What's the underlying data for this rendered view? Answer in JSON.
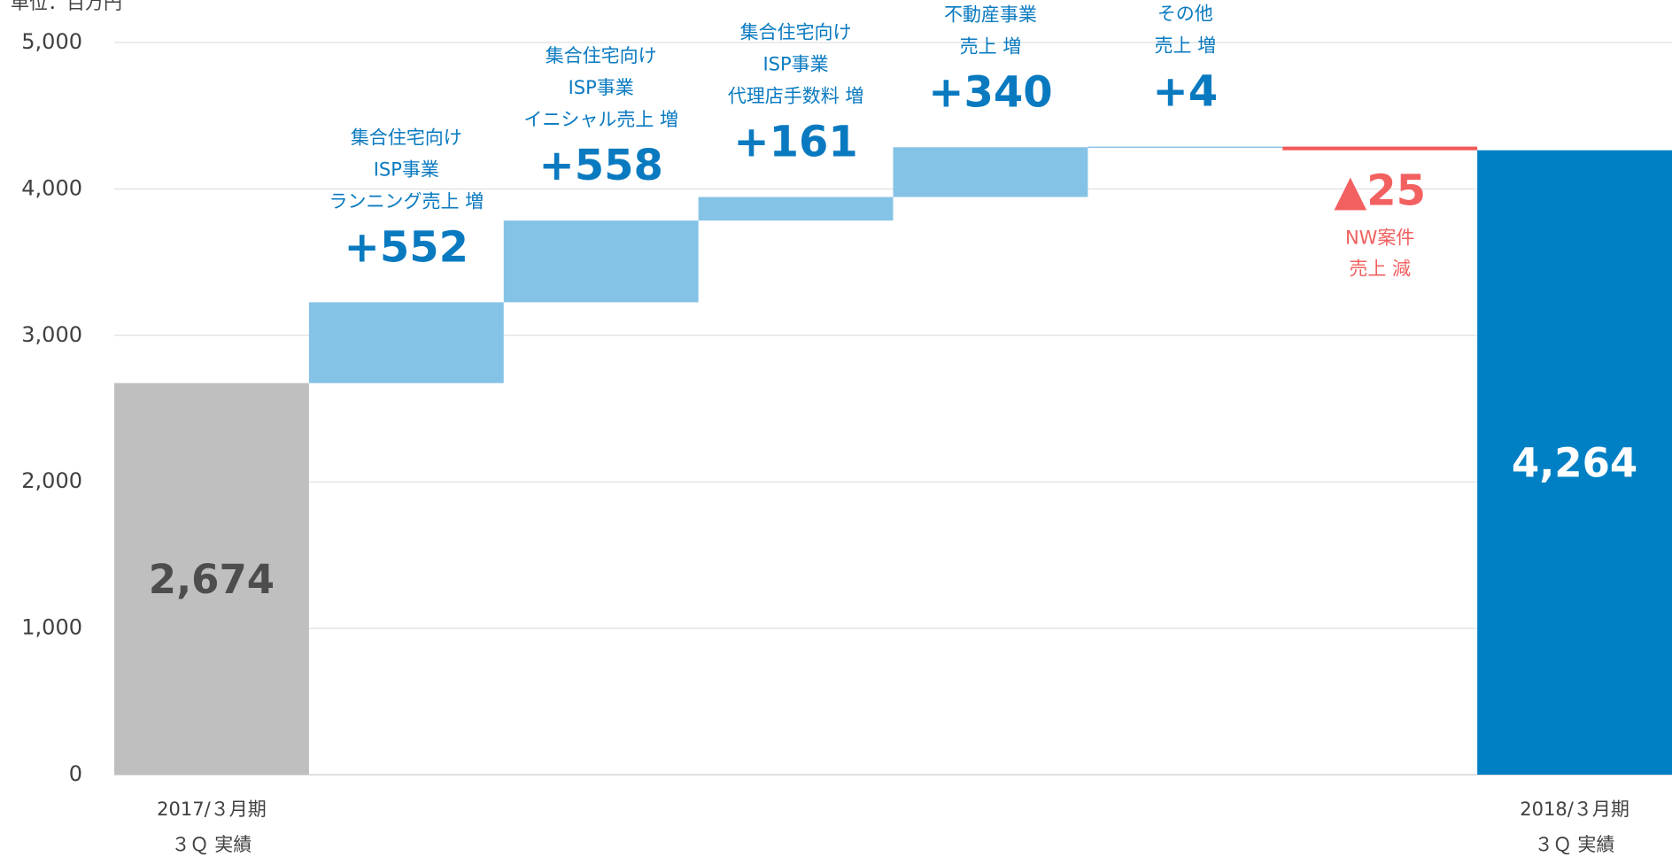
{
  "chart_data": {
    "type": "waterfall",
    "unit": "単位：百万円",
    "categories": [
      [
        "2017/３月期",
        "３Ｑ 実績"
      ],
      [
        "集合住宅向け",
        "ISP事業",
        "ランニング売上 増"
      ],
      [
        "集合住宅向け",
        "ISP事業",
        "イニシャル売上 増"
      ],
      [
        "集合住宅向け",
        "ISP事業",
        "代理店手数料 増"
      ],
      [
        "不動産事業",
        "売上 増"
      ],
      [
        "その他",
        "売上 増"
      ],
      [
        "NW案件",
        "売上 減"
      ],
      [
        "2018/３月期",
        "３Ｑ 実績"
      ]
    ],
    "values": [
      2674,
      552,
      558,
      161,
      340,
      4,
      -25,
      4264
    ],
    "value_labels": [
      "2,674",
      "+552",
      "+558",
      "+161",
      "+340",
      "+4",
      "▲25",
      "4,264"
    ],
    "colors": {
      "start": "#bfbfbf",
      "increase": "#85c3e6",
      "decrease": "#f25a5a",
      "end": "#0080c4"
    },
    "ylim": [
      0,
      5000
    ],
    "yticks": [
      0,
      {
        "value": 1000,
        "label": "1,000"
      },
      {
        "value": 2000,
        "label": "2,000"
      },
      {
        "value": 3000,
        "label": "3,000"
      },
      {
        "value": 4000,
        "label": "4,000"
      },
      {
        "value": 5000,
        "label": "5,000"
      }
    ],
    "grid": true
  }
}
